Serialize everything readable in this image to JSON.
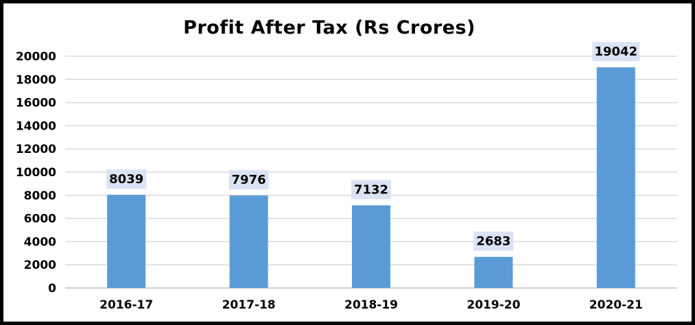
{
  "chart_data": {
    "type": "bar",
    "title": "Profit After Tax (Rs Crores)",
    "categories": [
      "2016-17",
      "2017-18",
      "2018-19",
      "2019-20",
      "2020-21"
    ],
    "values": [
      8039,
      7976,
      7132,
      2683,
      19042
    ],
    "data_labels": [
      "8039",
      "7976",
      "7132",
      "2683",
      "19042"
    ],
    "y_ticks": [
      "0",
      "2000",
      "4000",
      "6000",
      "8000",
      "10000",
      "12000",
      "14000",
      "16000",
      "18000",
      "20000"
    ],
    "ylim": [
      0,
      20000
    ],
    "xlabel": "",
    "ylabel": "",
    "grid": true,
    "legend": "none",
    "colors": {
      "bar": "#5B9BD5",
      "label_bg": "#DAE3F3",
      "grid": "#D9D9D9",
      "axis": "#BFBFBF",
      "border": "#000000"
    }
  }
}
